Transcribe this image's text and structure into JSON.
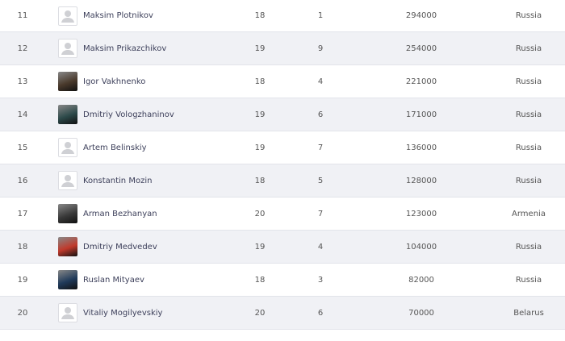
{
  "rows": [
    {
      "rank": "11",
      "name": "Maksim Plotnikov",
      "age": "18",
      "col3": "1",
      "value": "294000",
      "country": "Russia",
      "avatar": "placeholder"
    },
    {
      "rank": "12",
      "name": "Maksim Prikazchikov",
      "age": "19",
      "col3": "9",
      "value": "254000",
      "country": "Russia",
      "avatar": "placeholder"
    },
    {
      "rank": "13",
      "name": "Igor Vakhnenko",
      "age": "18",
      "col3": "4",
      "value": "221000",
      "country": "Russia",
      "avatar": "photo",
      "avatar_color": "#4a3a2c"
    },
    {
      "rank": "14",
      "name": "Dmitriy Vologzhaninov",
      "age": "19",
      "col3": "6",
      "value": "171000",
      "country": "Russia",
      "avatar": "photo",
      "avatar_color": "#2d4a4a"
    },
    {
      "rank": "15",
      "name": "Artem Belinskiy",
      "age": "19",
      "col3": "7",
      "value": "136000",
      "country": "Russia",
      "avatar": "placeholder"
    },
    {
      "rank": "16",
      "name": "Konstantin Mozin",
      "age": "18",
      "col3": "5",
      "value": "128000",
      "country": "Russia",
      "avatar": "placeholder"
    },
    {
      "rank": "17",
      "name": "Arman Bezhanyan",
      "age": "20",
      "col3": "7",
      "value": "123000",
      "country": "Armenia",
      "avatar": "photo",
      "avatar_color": "#3a3a3a"
    },
    {
      "rank": "18",
      "name": "Dmitriy Medvedev",
      "age": "19",
      "col3": "4",
      "value": "104000",
      "country": "Russia",
      "avatar": "photo",
      "avatar_color": "#c0392b"
    },
    {
      "rank": "19",
      "name": "Ruslan Mityaev",
      "age": "18",
      "col3": "3",
      "value": "82000",
      "country": "Russia",
      "avatar": "photo",
      "avatar_color": "#1f3a5a"
    },
    {
      "rank": "20",
      "name": "Vitaliy Mogilyevskiy",
      "age": "20",
      "col3": "6",
      "value": "70000",
      "country": "Belarus",
      "avatar": "placeholder"
    }
  ]
}
